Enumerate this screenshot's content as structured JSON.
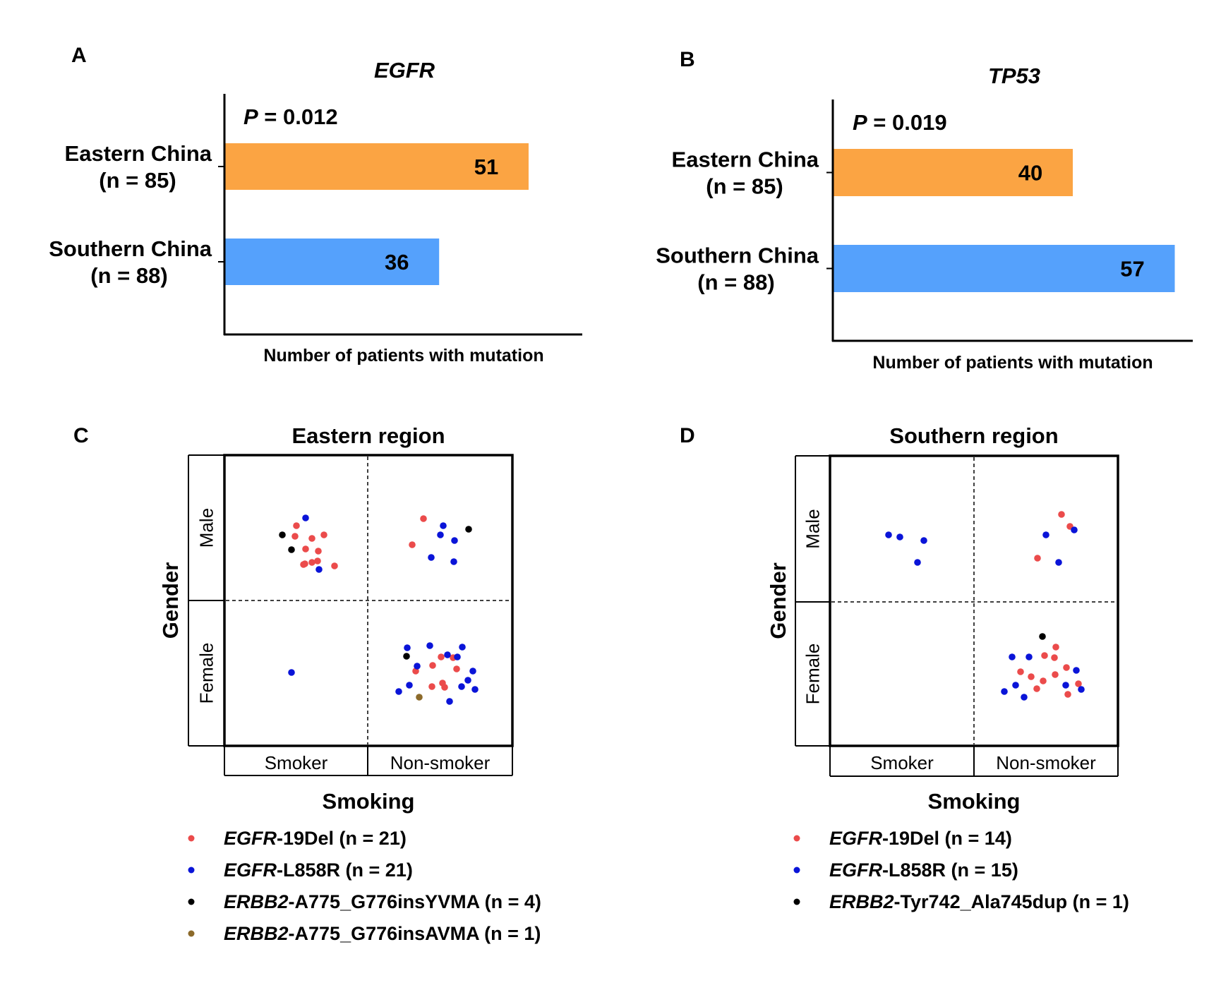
{
  "colors": {
    "eastern_bar": "#FBA443",
    "southern_bar": "#55A1FC",
    "egfr_19del": "#EB4B4B",
    "egfr_l858r": "#0A14D8",
    "erbb2_black": "#000000",
    "erbb2_brown": "#8C6A2A"
  },
  "chart_data": [
    {
      "panel": "A",
      "type": "bar",
      "orientation": "horizontal",
      "title": "EGFR",
      "pvalue_label": "P",
      "pvalue_text": " = 0.012",
      "categories": [
        {
          "line1": "Eastern China",
          "line2": "(n = 85)"
        },
        {
          "line1": "Southern China",
          "line2": "(n = 88)"
        }
      ],
      "values": [
        51,
        36
      ],
      "value_labels": [
        "51",
        "36"
      ],
      "xlabel": "Number of patients with mutation",
      "xlim": [
        0,
        60
      ]
    },
    {
      "panel": "B",
      "type": "bar",
      "orientation": "horizontal",
      "title": "TP53",
      "pvalue_label": "P",
      "pvalue_text": " = 0.019",
      "categories": [
        {
          "line1": "Eastern China",
          "line2": "(n = 85)"
        },
        {
          "line1": "Southern China",
          "line2": "(n = 88)"
        }
      ],
      "values": [
        40,
        57
      ],
      "value_labels": [
        "40",
        "57"
      ],
      "xlabel": "Number of patients with mutation",
      "xlim": [
        0,
        60
      ]
    },
    {
      "panel": "C",
      "type": "scatter",
      "title": "Eastern region",
      "xlabel": "Smoking",
      "ylabel": "Gender",
      "x_categories": [
        "Smoker",
        "Non-smoker"
      ],
      "y_categories": [
        "Male",
        "Female"
      ],
      "legend": [
        {
          "gene": "EGFR",
          "rest": "-19Del (n = 21)",
          "color": "#EB4B4B"
        },
        {
          "gene": "EGFR",
          "rest": "-L858R (n = 21)",
          "color": "#0A14D8"
        },
        {
          "gene": "ERBB2",
          "rest": "-A775_G776insYVMA (n = 4)",
          "color": "#000000"
        },
        {
          "gene": "ERBB2",
          "rest": "-A775_G776insAVMA (n = 1)",
          "color": "#8C6A2A"
        }
      ],
      "quadrants": [
        {
          "smoking": "Smoker",
          "gender": "Male",
          "counts": {
            "egfr_19del": 11,
            "egfr_l858r": 2,
            "erbb2_black": 2
          }
        },
        {
          "smoking": "Non-smoker",
          "gender": "Male",
          "counts": {
            "egfr_19del": 2,
            "egfr_l858r": 5,
            "erbb2_black": 1
          }
        },
        {
          "smoking": "Smoker",
          "gender": "Female",
          "counts": {
            "egfr_l858r": 1
          }
        },
        {
          "smoking": "Non-smoker",
          "gender": "Female",
          "counts": {
            "egfr_19del": 8,
            "egfr_l858r": 13,
            "erbb2_black": 1,
            "erbb2_brown": 1
          }
        }
      ]
    },
    {
      "panel": "D",
      "type": "scatter",
      "title": "Southern region",
      "xlabel": "Smoking",
      "ylabel": "Gender",
      "x_categories": [
        "Smoker",
        "Non-smoker"
      ],
      "y_categories": [
        "Male",
        "Female"
      ],
      "legend": [
        {
          "gene": "EGFR",
          "rest": "-19Del (n = 14)",
          "color": "#EB4B4B"
        },
        {
          "gene": "EGFR",
          "rest": "-L858R (n = 15)",
          "color": "#0A14D8"
        },
        {
          "gene": "ERBB2",
          "rest": "-Tyr742_Ala745dup (n = 1)",
          "color": "#000000"
        }
      ],
      "quadrants": [
        {
          "smoking": "Smoker",
          "gender": "Male",
          "counts": {
            "egfr_l858r": 4
          }
        },
        {
          "smoking": "Non-smoker",
          "gender": "Male",
          "counts": {
            "egfr_19del": 3,
            "egfr_l858r": 3
          }
        },
        {
          "smoking": "Smoker",
          "gender": "Female",
          "counts": {}
        },
        {
          "smoking": "Non-smoker",
          "gender": "Female",
          "counts": {
            "egfr_19del": 11,
            "egfr_l858r": 8,
            "erbb2_black": 1
          }
        }
      ]
    }
  ]
}
